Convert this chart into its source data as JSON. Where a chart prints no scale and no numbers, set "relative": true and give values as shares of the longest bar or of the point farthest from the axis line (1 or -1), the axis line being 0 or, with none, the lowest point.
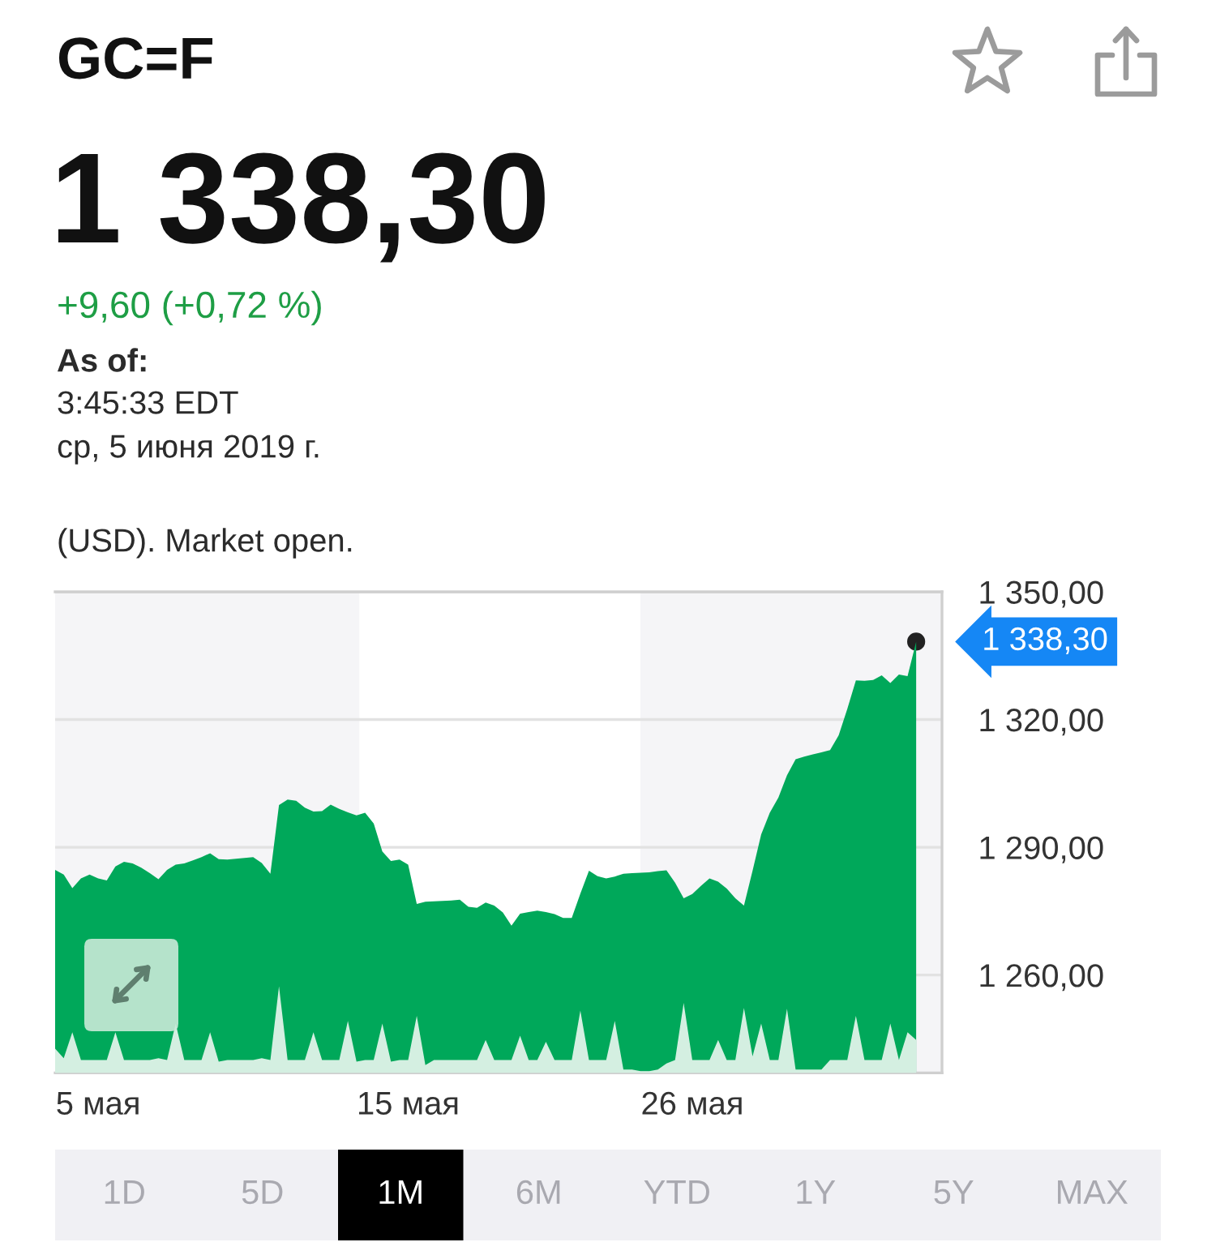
{
  "chart_data": [
    {
      "type": "area",
      "title": "GC=F",
      "subtitle": "1 338,30",
      "categories": [
        null,
        null,
        null,
        null,
        null,
        "5 мая",
        null,
        null,
        null,
        null,
        null,
        null,
        null,
        null,
        null,
        null,
        null,
        null,
        null,
        null,
        null,
        null,
        null,
        null,
        null,
        null,
        null,
        null,
        null,
        null,
        null,
        null,
        null,
        null,
        null,
        null,
        null,
        null,
        null,
        null,
        null,
        "15 мая",
        null,
        null,
        null,
        null,
        null,
        null,
        null,
        null,
        null,
        null,
        null,
        null,
        null,
        null,
        null,
        null,
        null,
        null,
        null,
        null,
        null,
        null,
        null,
        null,
        null,
        null,
        null,
        null,
        null,
        null,
        null,
        null,
        "26 мая",
        null,
        null,
        null,
        null,
        null,
        null,
        null,
        null,
        null,
        null,
        null,
        null,
        null,
        null,
        null,
        null,
        null,
        null,
        null,
        null,
        null,
        null,
        null,
        null,
        null,
        null,
        null,
        null,
        null
      ],
      "values": [
        1284.7,
        1283.6,
        1280.4,
        1282.7,
        1283.6,
        1282.7,
        1282.2,
        1285.5,
        1286.6,
        1286.2,
        1285.2,
        1283.9,
        1282.5,
        1284.7,
        1285.9,
        1286.2,
        1286.9,
        1287.7,
        1288.6,
        1287.2,
        1287.1,
        1287.3,
        1287.5,
        1287.7,
        1286.3,
        1283.8,
        1299.9,
        1301.2,
        1300.9,
        1299.3,
        1298.4,
        1298.5,
        1300.0,
        1299.0,
        1298.2,
        1297.5,
        1298.1,
        1295.6,
        1289.0,
        1286.8,
        1287.1,
        1285.9,
        1276.7,
        1277.2,
        1277.3,
        1277.4,
        1277.5,
        1277.7,
        1276.0,
        1275.8,
        1277.0,
        1276.3,
        1274.7,
        1271.6,
        1274.4,
        1274.8,
        1275.1,
        1274.8,
        1274.3,
        1273.4,
        1273.4,
        1279.1,
        1284.5,
        1283.2,
        1282.7,
        1283.1,
        1283.8,
        1283.9,
        1284.0,
        1284.1,
        1284.4,
        1284.6,
        1281.7,
        1278.0,
        1279.0,
        1280.9,
        1282.7,
        1281.9,
        1280.3,
        1278.0,
        1276.3,
        1284.5,
        1293.0,
        1298.1,
        1301.7,
        1306.9,
        1310.7,
        1311.3,
        1311.8,
        1312.3,
        1312.8,
        1316.3,
        1322.5,
        1329.2,
        1329.1,
        1329.3,
        1330.4,
        1328.6,
        1330.6,
        1330.2,
        1338.3,
        null,
        null,
        null
      ],
      "color": "#00a85a",
      "ylim": [
        1237,
        1350
      ],
      "yticks": [
        {
          "value": 1260,
          "label": "1 260,00"
        },
        {
          "value": 1290,
          "label": "1 290,00"
        },
        {
          "value": 1320,
          "label": "1 320,00"
        },
        {
          "value": 1350,
          "label": "1 350,00"
        }
      ],
      "grid": "y",
      "annotations": [
        "+9,60 (+0,72 %)",
        "As of:",
        "3:45:33 EDT",
        "ср, 5 июня 2019 г.",
        "(USD). Market open.",
        "1 338,30",
        "1D",
        "5D",
        "1M",
        "6M",
        "YTD",
        "1Y",
        "5Y",
        "MAX"
      ]
    },
    {
      "type": "area",
      "relative": true,
      "categories": [
        null,
        null,
        null,
        null,
        null,
        null,
        null,
        null,
        null,
        null,
        null,
        null,
        null,
        null,
        null,
        null,
        null,
        null,
        null,
        null,
        null,
        null,
        null,
        null,
        null,
        null,
        null,
        null,
        null,
        null,
        null,
        null,
        null,
        null,
        null,
        null,
        null,
        null,
        null,
        null,
        null,
        null,
        null,
        null,
        null,
        null,
        null,
        null,
        null,
        null,
        null,
        null,
        null,
        null,
        null,
        null,
        null,
        null,
        null,
        null,
        null,
        null,
        null,
        null,
        null,
        null,
        null,
        null,
        null,
        null,
        null,
        null,
        null,
        null,
        null,
        null,
        null,
        null,
        null,
        null,
        null,
        null,
        null,
        null,
        null,
        null,
        null,
        null,
        null,
        null,
        null,
        null,
        null,
        null,
        null,
        null,
        null,
        null,
        null,
        null,
        null,
        null,
        null,
        null
      ],
      "values": [
        0.28,
        0.17,
        0.47,
        0.15,
        0.15,
        0.15,
        0.15,
        0.47,
        0.15,
        0.15,
        0.15,
        0.15,
        0.17,
        0.15,
        0.57,
        0.15,
        0.15,
        0.15,
        0.47,
        0.13,
        0.15,
        0.15,
        0.15,
        0.15,
        0.17,
        0.15,
        1,
        0.15,
        0.15,
        0.15,
        0.47,
        0.15,
        0.15,
        0.15,
        0.6,
        0.13,
        0.15,
        0.15,
        0.57,
        0.13,
        0.15,
        0.15,
        0.66,
        0.09,
        0.15,
        0.15,
        0.15,
        0.15,
        0.15,
        0.15,
        0.38,
        0.15,
        0.15,
        0.15,
        0.43,
        0.15,
        0.15,
        0.36,
        0.15,
        0.15,
        0.15,
        0.72,
        0.15,
        0.15,
        0.15,
        0.6,
        0.04,
        0.04,
        0.02,
        0.02,
        0.04,
        0.11,
        0.15,
        0.81,
        0.15,
        0.15,
        0.15,
        0.38,
        0.15,
        0.15,
        0.75,
        0.19,
        0.57,
        0.15,
        0.15,
        0.74,
        0.04,
        0.04,
        0.04,
        0.04,
        0.15,
        0.15,
        0.15,
        0.66,
        0.15,
        0.15,
        0.15,
        0.57,
        0.15,
        0.47,
        0.38,
        null,
        null,
        null
      ],
      "color": "#d4efe1"
    }
  ]
}
